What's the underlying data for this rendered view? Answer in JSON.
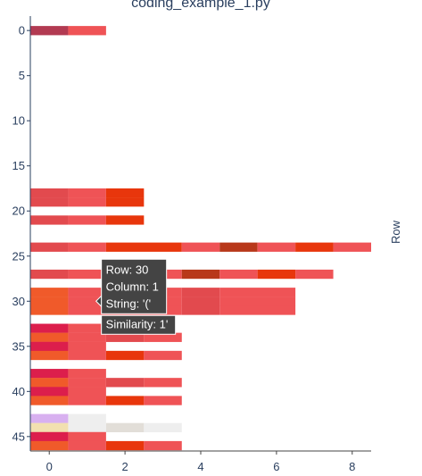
{
  "chart_data": {
    "type": "heatmap",
    "title": "coding_example_1.py",
    "ylabel": "Row",
    "xlabel": "",
    "xlim": [
      -0.5,
      8.5
    ],
    "ylim": [
      46.6,
      -1.6
    ],
    "y_reversed": true,
    "x_ticks": [
      0,
      2,
      4,
      6,
      8
    ],
    "y_ticks": [
      0,
      5,
      10,
      15,
      20,
      25,
      30,
      35,
      40,
      45
    ],
    "cells": [
      {
        "row": 0,
        "x0": -0.5,
        "x1": 0.5,
        "color": "#b23a52"
      },
      {
        "row": 0,
        "x0": 0.5,
        "x1": 1.5,
        "color": "#ef5356"
      },
      {
        "row": 18,
        "x0": -0.5,
        "x1": 0.5,
        "color": "#e24a4e"
      },
      {
        "row": 18,
        "x0": 0.5,
        "x1": 1.5,
        "color": "#ef5356"
      },
      {
        "row": 18,
        "x0": 1.5,
        "x1": 2.5,
        "color": "#e8360c"
      },
      {
        "row": 19,
        "x0": -0.5,
        "x1": 0.5,
        "color": "#e24a4e"
      },
      {
        "row": 19,
        "x0": 0.5,
        "x1": 1.5,
        "color": "#ef5356"
      },
      {
        "row": 19,
        "x0": 1.5,
        "x1": 2.5,
        "color": "#e8360c"
      },
      {
        "row": 21,
        "x0": -0.5,
        "x1": 0.5,
        "color": "#e24a4e"
      },
      {
        "row": 21,
        "x0": 0.5,
        "x1": 1.5,
        "color": "#ef5356"
      },
      {
        "row": 21,
        "x0": 1.5,
        "x1": 2.5,
        "color": "#e8360c"
      },
      {
        "row": 24,
        "x0": -0.5,
        "x1": 0.5,
        "color": "#e24a4e"
      },
      {
        "row": 24,
        "x0": 0.5,
        "x1": 1.5,
        "color": "#ef5356"
      },
      {
        "row": 24,
        "x0": 1.5,
        "x1": 3.5,
        "color": "#e8360c"
      },
      {
        "row": 24,
        "x0": 3.5,
        "x1": 4.5,
        "color": "#ef5356"
      },
      {
        "row": 24,
        "x0": 4.5,
        "x1": 5.5,
        "color": "#b8381a"
      },
      {
        "row": 24,
        "x0": 5.5,
        "x1": 6.5,
        "color": "#ef5356"
      },
      {
        "row": 24,
        "x0": 6.5,
        "x1": 7.5,
        "color": "#e8360c"
      },
      {
        "row": 24,
        "x0": 7.5,
        "x1": 8.5,
        "color": "#ef5356"
      },
      {
        "row": 27,
        "x0": -0.5,
        "x1": 0.5,
        "color": "#e24a4e"
      },
      {
        "row": 27,
        "x0": 0.5,
        "x1": 1.5,
        "color": "#ef5356"
      },
      {
        "row": 27,
        "x0": 1.5,
        "x1": 3.5,
        "color": "#ef5356"
      },
      {
        "row": 27,
        "x0": 3.5,
        "x1": 4.5,
        "color": "#b8381a"
      },
      {
        "row": 27,
        "x0": 4.5,
        "x1": 5.5,
        "color": "#ef5356"
      },
      {
        "row": 27,
        "x0": 5.5,
        "x1": 6.5,
        "color": "#e8360c"
      },
      {
        "row": 27,
        "x0": 6.5,
        "x1": 7.5,
        "color": "#ef5356"
      },
      {
        "row": 29,
        "x0": -0.5,
        "x1": 0.5,
        "color": "#f05a2a"
      },
      {
        "row": 29,
        "x0": 0.5,
        "x1": 3.5,
        "color": "#ef5356"
      },
      {
        "row": 29,
        "x0": 3.5,
        "x1": 4.5,
        "color": "#e24a4e"
      },
      {
        "row": 29,
        "x0": 4.5,
        "x1": 6.5,
        "color": "#ef5356"
      },
      {
        "row": 30,
        "x0": -0.5,
        "x1": 0.5,
        "color": "#f05a2a"
      },
      {
        "row": 30,
        "x0": 0.5,
        "x1": 3.5,
        "color": "#ef5356"
      },
      {
        "row": 30,
        "x0": 3.5,
        "x1": 4.5,
        "color": "#e24a4e"
      },
      {
        "row": 30,
        "x0": 4.5,
        "x1": 6.5,
        "color": "#ef5356"
      },
      {
        "row": 31,
        "x0": -0.5,
        "x1": 0.5,
        "color": "#f05a2a"
      },
      {
        "row": 31,
        "x0": 0.5,
        "x1": 3.5,
        "color": "#ef5356"
      },
      {
        "row": 31,
        "x0": 3.5,
        "x1": 4.5,
        "color": "#e24a4e"
      },
      {
        "row": 31,
        "x0": 4.5,
        "x1": 6.5,
        "color": "#ef5356"
      },
      {
        "row": 33,
        "x0": -0.5,
        "x1": 0.5,
        "color": "#dc1e4c"
      },
      {
        "row": 33,
        "x0": 0.5,
        "x1": 1.5,
        "color": "#ef5356"
      },
      {
        "row": 34,
        "x0": -0.5,
        "x1": 0.5,
        "color": "#f05a2a"
      },
      {
        "row": 34,
        "x0": 0.5,
        "x1": 1.5,
        "color": "#ef5356"
      },
      {
        "row": 34,
        "x0": 1.5,
        "x1": 2.5,
        "color": "#e24a4e"
      },
      {
        "row": 34,
        "x0": 2.5,
        "x1": 3.5,
        "color": "#ef5356"
      },
      {
        "row": 35,
        "x0": -0.5,
        "x1": 0.5,
        "color": "#dc1e4c"
      },
      {
        "row": 35,
        "x0": 0.5,
        "x1": 1.5,
        "color": "#ef5356"
      },
      {
        "row": 36,
        "x0": -0.5,
        "x1": 0.5,
        "color": "#f05a2a"
      },
      {
        "row": 36,
        "x0": 0.5,
        "x1": 1.5,
        "color": "#ef5356"
      },
      {
        "row": 36,
        "x0": 1.5,
        "x1": 2.5,
        "color": "#e8360c"
      },
      {
        "row": 36,
        "x0": 2.5,
        "x1": 3.5,
        "color": "#ef5356"
      },
      {
        "row": 38,
        "x0": -0.5,
        "x1": 0.5,
        "color": "#dc1e4c"
      },
      {
        "row": 38,
        "x0": 0.5,
        "x1": 1.5,
        "color": "#ef5356"
      },
      {
        "row": 39,
        "x0": -0.5,
        "x1": 0.5,
        "color": "#f05a2a"
      },
      {
        "row": 39,
        "x0": 0.5,
        "x1": 1.5,
        "color": "#ef5356"
      },
      {
        "row": 39,
        "x0": 1.5,
        "x1": 2.5,
        "color": "#e24a4e"
      },
      {
        "row": 39,
        "x0": 2.5,
        "x1": 3.5,
        "color": "#ef5356"
      },
      {
        "row": 40,
        "x0": -0.5,
        "x1": 0.5,
        "color": "#dc1e4c"
      },
      {
        "row": 40,
        "x0": 0.5,
        "x1": 1.5,
        "color": "#ef5356"
      },
      {
        "row": 41,
        "x0": -0.5,
        "x1": 0.5,
        "color": "#f05a2a"
      },
      {
        "row": 41,
        "x0": 0.5,
        "x1": 1.5,
        "color": "#ef5356"
      },
      {
        "row": 41,
        "x0": 1.5,
        "x1": 2.5,
        "color": "#e8360c"
      },
      {
        "row": 41,
        "x0": 2.5,
        "x1": 3.5,
        "color": "#ef5356"
      },
      {
        "row": 43,
        "x0": -0.5,
        "x1": 0.5,
        "color": "#d8b0f0"
      },
      {
        "row": 43,
        "x0": 0.5,
        "x1": 1.5,
        "color": "#eeeeee"
      },
      {
        "row": 44,
        "x0": -0.5,
        "x1": 0.5,
        "color": "#f2e0b0"
      },
      {
        "row": 44,
        "x0": 0.5,
        "x1": 1.5,
        "color": "#eeeeee"
      },
      {
        "row": 44,
        "x0": 1.5,
        "x1": 2.5,
        "color": "#e2ded8"
      },
      {
        "row": 44,
        "x0": 2.5,
        "x1": 3.5,
        "color": "#eeeeee"
      },
      {
        "row": 45,
        "x0": -0.5,
        "x1": 0.5,
        "color": "#dc1e4c"
      },
      {
        "row": 45,
        "x0": 0.5,
        "x1": 1.5,
        "color": "#ef5356"
      },
      {
        "row": 46,
        "x0": -0.5,
        "x1": 0.5,
        "color": "#f05a2a"
      },
      {
        "row": 46,
        "x0": 0.5,
        "x1": 1.5,
        "color": "#ef5356"
      },
      {
        "row": 46,
        "x0": 1.5,
        "x1": 2.5,
        "color": "#e8360c"
      },
      {
        "row": 46,
        "x0": 2.5,
        "x1": 3.5,
        "color": "#ef5356"
      }
    ],
    "hover": {
      "row": 30,
      "column": 1,
      "lines": [
        "Row: 30",
        "Column: 1",
        "String: '('",
        "Similarity: 1'"
      ],
      "background": "#444444"
    }
  }
}
